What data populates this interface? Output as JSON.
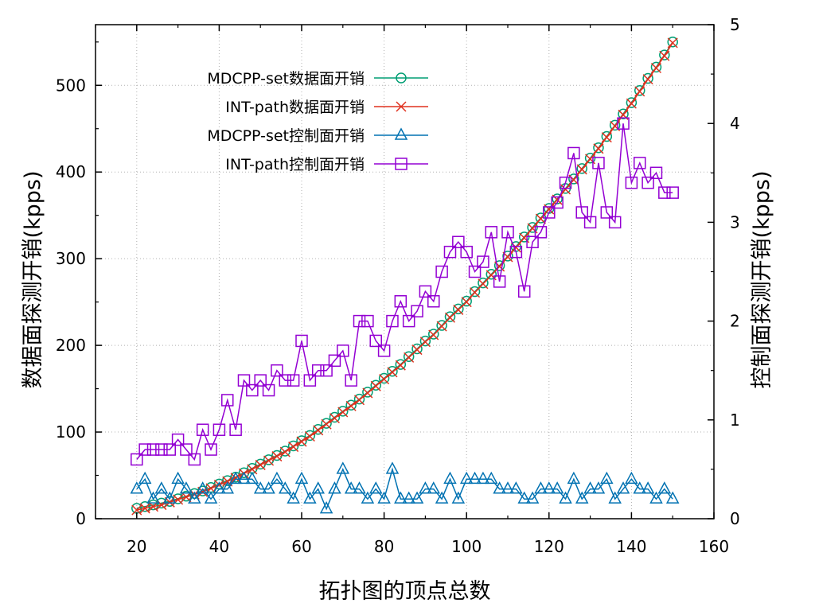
{
  "chart_data": {
    "type": "line",
    "xlabel": "拓扑图的顶点总数",
    "ylabel": "数据面探测开销(kpps)",
    "y2label": "控制面探测开销(kpps)",
    "xlim": [
      10,
      160
    ],
    "ylim": [
      0,
      570
    ],
    "y2lim": [
      0,
      5
    ],
    "xticks": [
      "20",
      "40",
      "60",
      "80",
      "100",
      "120",
      "140",
      "160"
    ],
    "yticks": [
      "0",
      "100",
      "200",
      "300",
      "400",
      "500"
    ],
    "y2ticks": [
      "0",
      "1",
      "2",
      "3",
      "4",
      "5"
    ],
    "grid": true,
    "legend_position": "top-left",
    "series": [
      {
        "name": "MDCPP-set数据面开销",
        "axis": "left",
        "marker": "circle",
        "color": "#009e73",
        "x": [
          20,
          22,
          24,
          26,
          28,
          30,
          32,
          34,
          36,
          38,
          40,
          42,
          44,
          46,
          48,
          50,
          52,
          54,
          56,
          58,
          60,
          62,
          64,
          66,
          68,
          70,
          72,
          74,
          76,
          78,
          80,
          82,
          84,
          86,
          88,
          90,
          92,
          94,
          96,
          98,
          100,
          102,
          104,
          106,
          108,
          110,
          112,
          114,
          116,
          118,
          120,
          122,
          124,
          126,
          128,
          130,
          132,
          134,
          136,
          138,
          140,
          142,
          144,
          146,
          148,
          150
        ],
        "values": [
          12,
          14,
          16,
          18,
          20,
          23,
          26,
          29,
          32,
          36,
          40,
          44,
          48,
          53,
          58,
          63,
          68,
          73,
          78,
          84,
          90,
          96,
          103,
          110,
          117,
          124,
          131,
          138,
          146,
          154,
          162,
          170,
          178,
          187,
          196,
          205,
          213,
          223,
          233,
          242,
          251,
          262,
          272,
          282,
          292,
          303,
          314,
          325,
          336,
          347,
          358,
          369,
          381,
          392,
          404,
          416,
          428,
          441,
          454,
          467,
          480,
          494,
          508,
          521,
          535,
          550
        ]
      },
      {
        "name": "INT-path数据面开销",
        "axis": "left",
        "marker": "cross",
        "color": "#e0301e",
        "x": [
          20,
          22,
          24,
          26,
          28,
          30,
          32,
          34,
          36,
          38,
          40,
          42,
          44,
          46,
          48,
          50,
          52,
          54,
          56,
          58,
          60,
          62,
          64,
          66,
          68,
          70,
          72,
          74,
          76,
          78,
          80,
          82,
          84,
          86,
          88,
          90,
          92,
          94,
          96,
          98,
          100,
          102,
          104,
          106,
          108,
          110,
          112,
          114,
          116,
          118,
          120,
          122,
          124,
          126,
          128,
          130,
          132,
          134,
          136,
          138,
          140,
          142,
          144,
          146,
          148,
          150
        ],
        "values": [
          10,
          12,
          14,
          16,
          19,
          22,
          25,
          28,
          31,
          35,
          39,
          43,
          47,
          52,
          57,
          62,
          67,
          72,
          77,
          83,
          89,
          95,
          102,
          109,
          116,
          123,
          130,
          137,
          145,
          153,
          161,
          169,
          177,
          186,
          195,
          204,
          212,
          222,
          232,
          241,
          250,
          261,
          271,
          281,
          291,
          302,
          313,
          324,
          335,
          346,
          357,
          368,
          380,
          391,
          403,
          415,
          427,
          440,
          453,
          466,
          479,
          493,
          507,
          520,
          534,
          549
        ]
      },
      {
        "name": "MDCPP-set控制面开销",
        "axis": "right",
        "marker": "triangle",
        "color": "#0072b2",
        "x": [
          20,
          22,
          24,
          26,
          28,
          30,
          32,
          34,
          36,
          38,
          40,
          42,
          44,
          46,
          48,
          50,
          52,
          54,
          56,
          58,
          60,
          62,
          64,
          66,
          68,
          70,
          72,
          74,
          76,
          78,
          80,
          82,
          84,
          86,
          88,
          90,
          92,
          94,
          96,
          98,
          100,
          102,
          104,
          106,
          108,
          110,
          112,
          114,
          116,
          118,
          120,
          122,
          124,
          126,
          128,
          130,
          132,
          134,
          136,
          138,
          140,
          142,
          144,
          146,
          148,
          150
        ],
        "values": [
          0.3,
          0.4,
          0.2,
          0.3,
          0.2,
          0.4,
          0.3,
          0.2,
          0.3,
          0.2,
          0.3,
          0.3,
          0.4,
          0.4,
          0.4,
          0.3,
          0.3,
          0.4,
          0.3,
          0.2,
          0.4,
          0.2,
          0.3,
          0.1,
          0.3,
          0.5,
          0.3,
          0.3,
          0.2,
          0.3,
          0.2,
          0.5,
          0.2,
          0.2,
          0.2,
          0.3,
          0.3,
          0.2,
          0.4,
          0.2,
          0.4,
          0.4,
          0.4,
          0.4,
          0.3,
          0.3,
          0.3,
          0.2,
          0.2,
          0.3,
          0.3,
          0.3,
          0.2,
          0.4,
          0.2,
          0.3,
          0.3,
          0.4,
          0.2,
          0.3,
          0.4,
          0.3,
          0.3,
          0.2,
          0.3,
          0.2
        ]
      },
      {
        "name": "INT-path控制面开销",
        "axis": "right",
        "marker": "square",
        "color": "#9400d3",
        "x": [
          20,
          22,
          24,
          26,
          28,
          30,
          32,
          34,
          36,
          38,
          40,
          42,
          44,
          46,
          48,
          50,
          52,
          54,
          56,
          58,
          60,
          62,
          64,
          66,
          68,
          70,
          72,
          74,
          76,
          78,
          80,
          82,
          84,
          86,
          88,
          90,
          92,
          94,
          96,
          98,
          100,
          102,
          104,
          106,
          108,
          110,
          112,
          114,
          116,
          118,
          120,
          122,
          124,
          126,
          128,
          130,
          132,
          134,
          136,
          138,
          140,
          142,
          144,
          146,
          148,
          150
        ],
        "values": [
          0.6,
          0.7,
          0.7,
          0.7,
          0.7,
          0.8,
          0.7,
          0.6,
          0.9,
          0.7,
          0.9,
          1.2,
          0.9,
          1.4,
          1.3,
          1.4,
          1.3,
          1.5,
          1.4,
          1.4,
          1.8,
          1.4,
          1.5,
          1.5,
          1.6,
          1.7,
          1.4,
          2.0,
          2.0,
          1.8,
          1.7,
          2.0,
          2.2,
          2.0,
          2.1,
          2.3,
          2.2,
          2.5,
          2.7,
          2.8,
          2.7,
          2.5,
          2.6,
          2.9,
          2.4,
          2.9,
          2.7,
          2.3,
          2.8,
          2.9,
          3.1,
          3.2,
          3.4,
          3.7,
          3.1,
          3.0,
          3.6,
          3.1,
          3.0,
          4.0,
          3.4,
          3.6,
          3.4,
          3.5,
          3.3,
          3.3
        ]
      }
    ]
  }
}
